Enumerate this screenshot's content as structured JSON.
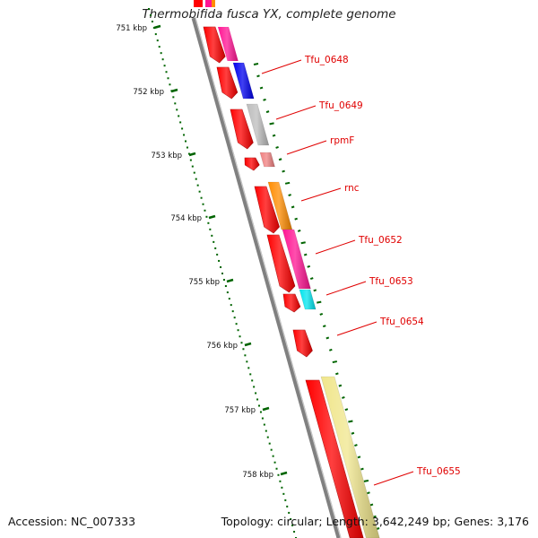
{
  "map": {
    "title": "Thermobifida fusca YX, complete genome",
    "accession_text": "Accession: NC_007333",
    "stats_text": "Topology: circular; Length: 3,642,249 bp; Genes: 3,176"
  },
  "ruler": {
    "ticks": [
      {
        "kbp": 751,
        "label": "751 kbp"
      },
      {
        "kbp": 752,
        "label": "752 kbp"
      },
      {
        "kbp": 753,
        "label": "753 kbp"
      },
      {
        "kbp": 754,
        "label": "754 kbp"
      },
      {
        "kbp": 755,
        "label": "755 kbp"
      },
      {
        "kbp": 756,
        "label": "756 kbp"
      },
      {
        "kbp": 757,
        "label": "757 kbp"
      },
      {
        "kbp": 758,
        "label": "758 kbp"
      }
    ]
  },
  "genes": [
    {
      "label": "Tfu_0648",
      "color": "#0000ee"
    },
    {
      "label": "Tfu_0649",
      "color": "#bdbdbd"
    },
    {
      "label": "rpmF",
      "color": "#f08080"
    },
    {
      "label": "rnc",
      "color": "#ff8c00"
    },
    {
      "label": "Tfu_0652",
      "color": "#ff1493"
    },
    {
      "label": "Tfu_0653",
      "color": "#00e5ee"
    },
    {
      "label": "Tfu_0654",
      "color": "#ff0000"
    },
    {
      "label": "Tfu_0655",
      "color": "#f0e68c"
    }
  ],
  "colors": {
    "cds": "#ff0000",
    "backbone": "#808080",
    "tick": "#006400",
    "label": "#e00000"
  }
}
